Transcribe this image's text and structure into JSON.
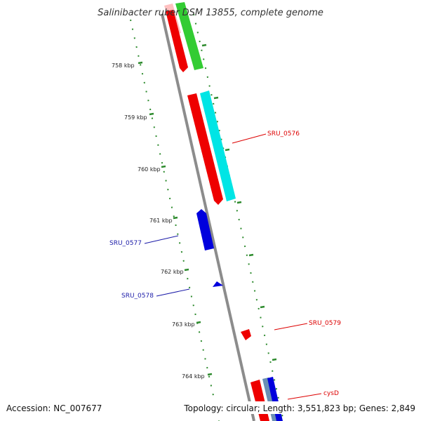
{
  "title": "Salinibacter ruber DSM 13855, complete genome",
  "accession": "Accession: NC_007677",
  "topology": "Topology: circular; Length: 3,551,823 bp; Genes: 2,849",
  "ticks": [
    "758 kbp",
    "759 kbp",
    "760 kbp",
    "761 kbp",
    "762 kbp",
    "763 kbp",
    "764 kbp"
  ],
  "gene_labels": [
    {
      "id": "SRU_0576",
      "text": "SRU_0576",
      "color": "#dd0000"
    },
    {
      "id": "SRU_0577",
      "text": "SRU_0577",
      "color": "#1a1aa8"
    },
    {
      "id": "SRU_0578",
      "text": "SRU_0578",
      "color": "#1a1aa8"
    },
    {
      "id": "SRU_0579",
      "text": "SRU_0579",
      "color": "#dd0000"
    },
    {
      "id": "cysD",
      "text": "cysD",
      "color": "#dd0000"
    }
  ],
  "colors": {
    "backbone": "#8c8c8c",
    "tick_marks": "#2e8b2e",
    "forward_cds": "#ee0000",
    "reverse_cds": "#0000dd",
    "cyan_feature": "#00e5e5",
    "green_feature": "#33cc33",
    "pink_feature": "#ffc0c0",
    "steel_feature": "#6a8fb5"
  }
}
